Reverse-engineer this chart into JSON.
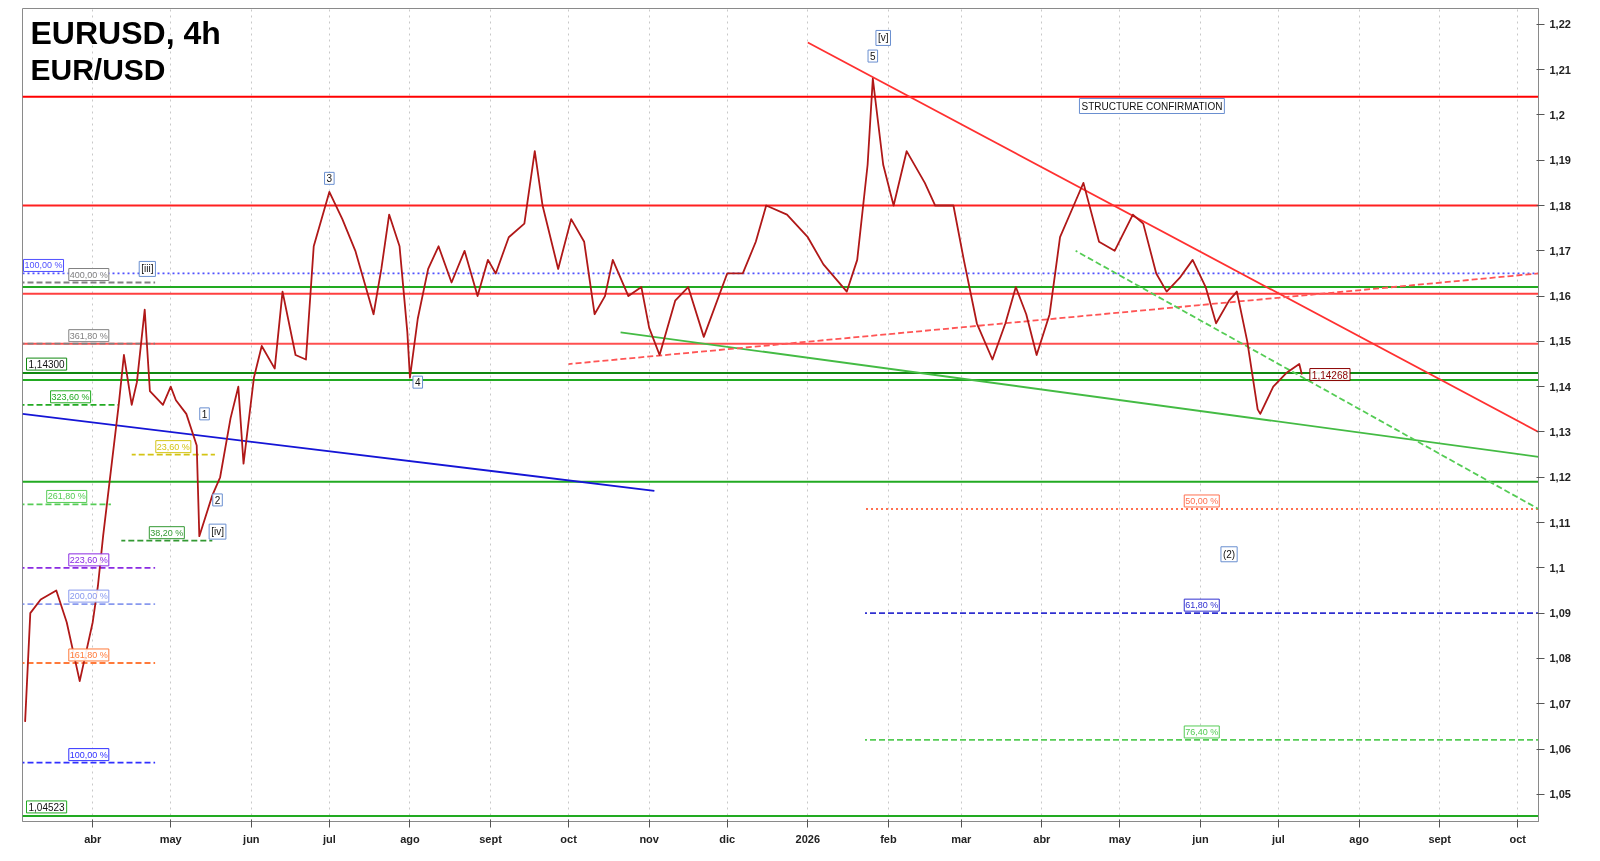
{
  "chart_data": {
    "type": "line",
    "title": "EURUSD, 4h",
    "subtitle": "EUR/USD",
    "xlim": [
      "2025-03-05",
      "2026-10-09"
    ],
    "ylim": [
      1.044,
      1.2235
    ],
    "xticks": [
      {
        "value": "2025-04-01",
        "label": "abr"
      },
      {
        "value": "2025-05-01",
        "label": "may"
      },
      {
        "value": "2025-06-01",
        "label": "jun"
      },
      {
        "value": "2025-07-01",
        "label": "jul"
      },
      {
        "value": "2025-08-01",
        "label": "ago"
      },
      {
        "value": "2025-09-01",
        "label": "sept"
      },
      {
        "value": "2025-10-01",
        "label": "oct"
      },
      {
        "value": "2025-11-01",
        "label": "nov"
      },
      {
        "value": "2025-12-01",
        "label": "dic"
      },
      {
        "value": "2026-01-01",
        "label": "2026"
      },
      {
        "value": "2026-02-01",
        "label": "feb"
      },
      {
        "value": "2026-03-01",
        "label": "mar"
      },
      {
        "value": "2026-04-01",
        "label": "abr"
      },
      {
        "value": "2026-05-01",
        "label": "may"
      },
      {
        "value": "2026-06-01",
        "label": "jun"
      },
      {
        "value": "2026-07-01",
        "label": "jul"
      },
      {
        "value": "2026-08-01",
        "label": "ago"
      },
      {
        "value": "2026-09-01",
        "label": "sept"
      },
      {
        "value": "2026-10-01",
        "label": "oct"
      }
    ],
    "yticks": [
      {
        "value": 1.05,
        "label": "1,05"
      },
      {
        "value": 1.06,
        "label": "1,06"
      },
      {
        "value": 1.07,
        "label": "1,07"
      },
      {
        "value": 1.08,
        "label": "1,08"
      },
      {
        "value": 1.09,
        "label": "1,09"
      },
      {
        "value": 1.1,
        "label": "1,1"
      },
      {
        "value": 1.11,
        "label": "1,11"
      },
      {
        "value": 1.12,
        "label": "1,12"
      },
      {
        "value": 1.13,
        "label": "1,13"
      },
      {
        "value": 1.14,
        "label": "1,14"
      },
      {
        "value": 1.15,
        "label": "1,15"
      },
      {
        "value": 1.16,
        "label": "1,16"
      },
      {
        "value": 1.17,
        "label": "1,17"
      },
      {
        "value": 1.18,
        "label": "1,18"
      },
      {
        "value": 1.19,
        "label": "1,19"
      },
      {
        "value": 1.2,
        "label": "1,2"
      },
      {
        "value": 1.21,
        "label": "1,21"
      },
      {
        "value": 1.22,
        "label": "1,22"
      }
    ],
    "grid": "x",
    "series": [
      {
        "name": "100,00 %",
        "x": [
          "2025-03-05",
          "2026-10-09"
        ],
        "values": [
          1.165,
          1.165
        ],
        "color": "#5050ff",
        "line_style": "dotted"
      },
      {
        "name": "400,00 %",
        "x": [
          "2025-03-05",
          "2025-04-25"
        ],
        "values": [
          1.163,
          1.163
        ],
        "color": "#808080",
        "line_style": "dashed"
      },
      {
        "name": "361,80 %",
        "x": [
          "2025-03-05",
          "2025-04-25"
        ],
        "values": [
          1.1495,
          1.1495
        ],
        "color": "#808080",
        "line_style": "dashed"
      },
      {
        "name": "323,60 %",
        "x": [
          "2025-03-05",
          "2025-04-11"
        ],
        "values": [
          1.136,
          1.136
        ],
        "color": "#22aa22",
        "line_style": "dashed"
      },
      {
        "name": "261,80 %",
        "x": [
          "2025-03-05",
          "2025-04-08"
        ],
        "values": [
          1.114,
          1.114
        ],
        "color": "#55cc55",
        "line_style": "dashed"
      },
      {
        "name": "223,60 %",
        "x": [
          "2025-03-05",
          "2025-04-25"
        ],
        "values": [
          1.1,
          1.1
        ],
        "color": "#8a2be2",
        "line_style": "dashed"
      },
      {
        "name": "200,00 %",
        "x": [
          "2025-03-05",
          "2025-04-25"
        ],
        "values": [
          1.092,
          1.092
        ],
        "color": "#8899ee",
        "line_style": "dashed"
      },
      {
        "name": "161,80 %",
        "x": [
          "2025-03-05",
          "2025-04-25"
        ],
        "values": [
          1.079,
          1.079
        ],
        "color": "#ff7a3a",
        "line_style": "dashed"
      },
      {
        "name": "100,00 %",
        "x": [
          "2025-03-05",
          "2025-04-25"
        ],
        "values": [
          1.057,
          1.057
        ],
        "color": "#3030ff",
        "line_style": "dashed"
      },
      {
        "name": "38,20 %",
        "x": [
          "2025-04-12",
          "2025-05-17"
        ],
        "values": [
          1.106,
          1.106
        ],
        "color": "#339933",
        "line_style": "dashed"
      },
      {
        "name": "23,60 %",
        "x": [
          "2025-04-16",
          "2025-05-18"
        ],
        "values": [
          1.125,
          1.125
        ],
        "color": "#d4c414",
        "line_style": "dashed"
      },
      {
        "name": "50,00 %",
        "x": [
          "2026-01-23",
          "2026-10-09"
        ],
        "values": [
          1.113,
          1.113
        ],
        "color": "#ff7050",
        "line_style": "dotted"
      },
      {
        "name": "61,80 %",
        "x": [
          "2026-01-23",
          "2026-10-09"
        ],
        "values": [
          1.09,
          1.09
        ],
        "color": "#3030d0",
        "line_style": "dashed"
      },
      {
        "name": "76,40 %",
        "x": [
          "2026-01-23",
          "2026-10-09"
        ],
        "values": [
          1.062,
          1.062
        ],
        "color": "#55cc55",
        "line_style": "dashed"
      },
      {
        "x": [
          "2025-03-05",
          "2025-11-03"
        ],
        "values": [
          1.134,
          1.117
        ],
        "color": "#1515d6"
      },
      {
        "x": [
          "2026-01-01",
          "2026-10-09"
        ],
        "values": [
          1.216,
          1.13
        ],
        "color": "#ff3030"
      },
      {
        "x": [
          "2025-10-21",
          "2026-10-09"
        ],
        "values": [
          1.152,
          1.1245
        ],
        "color": "#44bb44"
      },
      {
        "x": [
          "2025-10-01",
          "2026-10-09"
        ],
        "values": [
          1.145,
          1.165
        ],
        "color": "#ff5555",
        "line_style": "dashed"
      },
      {
        "x": [
          "2026-04-14",
          "2026-10-09"
        ],
        "values": [
          1.17,
          1.113
        ],
        "color": "#55cc55",
        "line_style": "dashed"
      },
      {
        "color": "#b01818",
        "x": [
          "2025-03-06",
          "2025-03-08",
          "2025-03-12",
          "2025-03-18",
          "2025-03-22",
          "2025-03-27",
          "2025-04-01",
          "2025-04-03",
          "2025-04-05",
          "2025-04-11",
          "2025-04-13",
          "2025-04-16",
          "2025-04-18",
          "2025-04-21",
          "2025-04-23",
          "2025-04-28",
          "2025-05-01",
          "2025-05-03",
          "2025-05-07",
          "2025-05-11",
          "2025-05-12",
          "2025-05-17",
          "2025-05-20",
          "2025-05-24",
          "2025-05-27",
          "2025-05-29",
          "2025-06-02",
          "2025-06-05",
          "2025-06-10",
          "2025-06-13",
          "2025-06-18",
          "2025-06-22",
          "2025-06-25",
          "2025-07-01",
          "2025-07-06",
          "2025-07-11",
          "2025-07-16",
          "2025-07-18",
          "2025-07-21",
          "2025-07-24",
          "2025-07-28",
          "2025-07-31",
          "2025-08-01",
          "2025-08-04",
          "2025-08-08",
          "2025-08-12",
          "2025-08-17",
          "2025-08-22",
          "2025-08-27",
          "2025-08-31",
          "2025-09-03",
          "2025-09-08",
          "2025-09-14",
          "2025-09-18",
          "2025-09-21",
          "2025-09-27",
          "2025-10-02",
          "2025-10-07",
          "2025-10-11",
          "2025-10-15",
          "2025-10-18",
          "2025-10-24",
          "2025-10-29",
          "2025-11-01",
          "2025-11-05",
          "2025-11-11",
          "2025-11-16",
          "2025-11-22",
          "2025-12-01",
          "2025-12-07",
          "2025-12-12",
          "2025-12-16",
          "2025-12-24",
          "2026-01-01",
          "2026-01-07",
          "2026-01-16",
          "2026-01-20",
          "2026-01-24",
          "2026-01-26",
          "2026-01-30",
          "2026-02-03",
          "2026-02-08",
          "2026-02-15",
          "2026-02-19",
          "2026-02-26",
          "2026-03-02",
          "2026-03-07",
          "2026-03-13",
          "2026-03-18",
          "2026-03-22",
          "2026-03-26",
          "2026-03-30",
          "2026-04-04",
          "2026-04-08",
          "2026-04-14",
          "2026-04-17",
          "2026-04-23",
          "2026-04-29",
          "2026-05-06",
          "2026-05-10",
          "2026-05-15",
          "2026-05-19",
          "2026-05-24",
          "2026-05-29",
          "2026-06-03",
          "2026-06-07",
          "2026-06-12",
          "2026-06-15",
          "2026-06-19",
          "2026-06-23",
          "2026-06-24",
          "2026-06-29",
          "2026-07-04",
          "2026-07-09",
          "2026-07-10"
        ],
        "values": [
          1.066,
          1.09,
          1.093,
          1.095,
          1.088,
          1.075,
          1.088,
          1.096,
          1.107,
          1.136,
          1.147,
          1.136,
          1.141,
          1.157,
          1.139,
          1.136,
          1.14,
          1.137,
          1.134,
          1.127,
          1.107,
          1.116,
          1.12,
          1.133,
          1.14,
          1.123,
          1.142,
          1.149,
          1.144,
          1.161,
          1.147,
          1.146,
          1.171,
          1.183,
          1.177,
          1.17,
          1.16,
          1.156,
          1.166,
          1.178,
          1.171,
          1.152,
          1.142,
          1.155,
          1.166,
          1.171,
          1.163,
          1.17,
          1.16,
          1.168,
          1.165,
          1.173,
          1.176,
          1.192,
          1.18,
          1.166,
          1.177,
          1.172,
          1.156,
          1.16,
          1.168,
          1.16,
          1.162,
          1.153,
          1.147,
          1.159,
          1.162,
          1.151,
          1.165,
          1.165,
          1.172,
          1.18,
          1.178,
          1.173,
          1.167,
          1.161,
          1.168,
          1.189,
          1.208,
          1.189,
          1.18,
          1.192,
          1.185,
          1.18,
          1.18,
          1.168,
          1.154,
          1.146,
          1.154,
          1.162,
          1.156,
          1.147,
          1.156,
          1.173,
          1.181,
          1.185,
          1.172,
          1.17,
          1.178,
          1.176,
          1.165,
          1.161,
          1.164,
          1.168,
          1.162,
          1.154,
          1.159,
          1.161,
          1.15,
          1.135,
          1.134,
          1.14,
          1.143,
          1.145,
          1.14268
        ]
      }
    ],
    "ref_lines": [
      {
        "axis": "y",
        "value": 1.204,
        "color": "#ff0000"
      },
      {
        "axis": "y",
        "value": 1.18,
        "color": "#ff2020"
      },
      {
        "axis": "y",
        "value": 1.162,
        "color": "#22aa22"
      },
      {
        "axis": "y",
        "value": 1.1605,
        "color": "#ff4040"
      },
      {
        "axis": "y",
        "value": 1.1495,
        "color": "#ff5050"
      },
      {
        "axis": "y",
        "value": 1.143,
        "color": "#118811",
        "label": "1,14300"
      },
      {
        "axis": "y",
        "value": 1.1415,
        "color": "#22aa22"
      },
      {
        "axis": "y",
        "value": 1.119,
        "color": "#22aa22"
      },
      {
        "axis": "y",
        "value": 1.04523,
        "color": "#22aa22",
        "label": "1,04523"
      }
    ],
    "annotations": [
      {
        "text": "3",
        "x": "2025-07-01",
        "y": 1.186
      },
      {
        "text": "4",
        "x": "2025-08-04",
        "y": 1.141
      },
      {
        "text": "1",
        "x": "2025-05-14",
        "y": 1.134
      },
      {
        "text": "2",
        "x": "2025-05-19",
        "y": 1.115
      },
      {
        "text": "[iii]",
        "x": "2025-04-22",
        "y": 1.166
      },
      {
        "text": "[iv]",
        "x": "2025-05-19",
        "y": 1.108
      },
      {
        "text": "5",
        "x": "2026-01-26",
        "y": 1.213
      },
      {
        "text": "[v]",
        "x": "2026-01-30",
        "y": 1.217
      },
      {
        "text": "(2)",
        "x": "2026-06-12",
        "y": 1.103
      },
      "STRUCTURE CONFIRMATION",
      {
        "text": "1,14268",
        "x": "2026-07-10",
        "y": 1.14268
      }
    ]
  }
}
